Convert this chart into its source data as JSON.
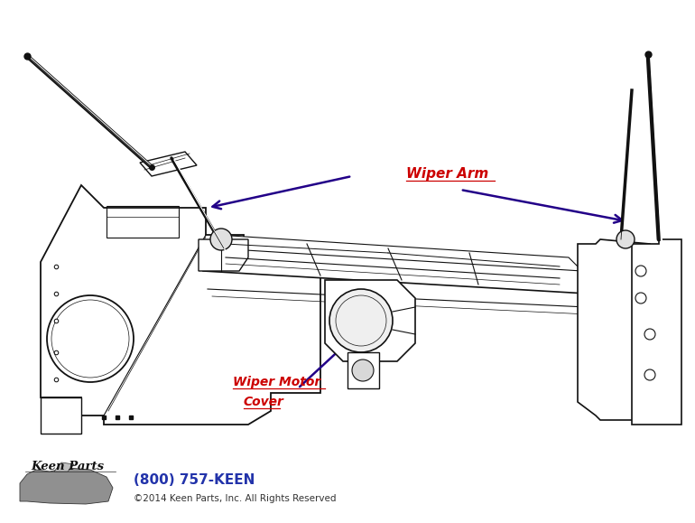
{
  "bg_color": "#ffffff",
  "fig_width": 7.7,
  "fig_height": 5.79,
  "dpi": 100,
  "label_wiper_arm": "Wiper Arm",
  "label_wiper_motor_line1": "Wiper Motor",
  "label_wiper_motor_line2": "Cover",
  "label_phone": "(800) 757-KEEN",
  "label_copyright": "©2014 Keen Parts, Inc. All Rights Reserved",
  "label_color_red": "#cc0000",
  "label_color_blue": "#2233aa",
  "arrow_color": "#220088",
  "line_color": "#111111"
}
